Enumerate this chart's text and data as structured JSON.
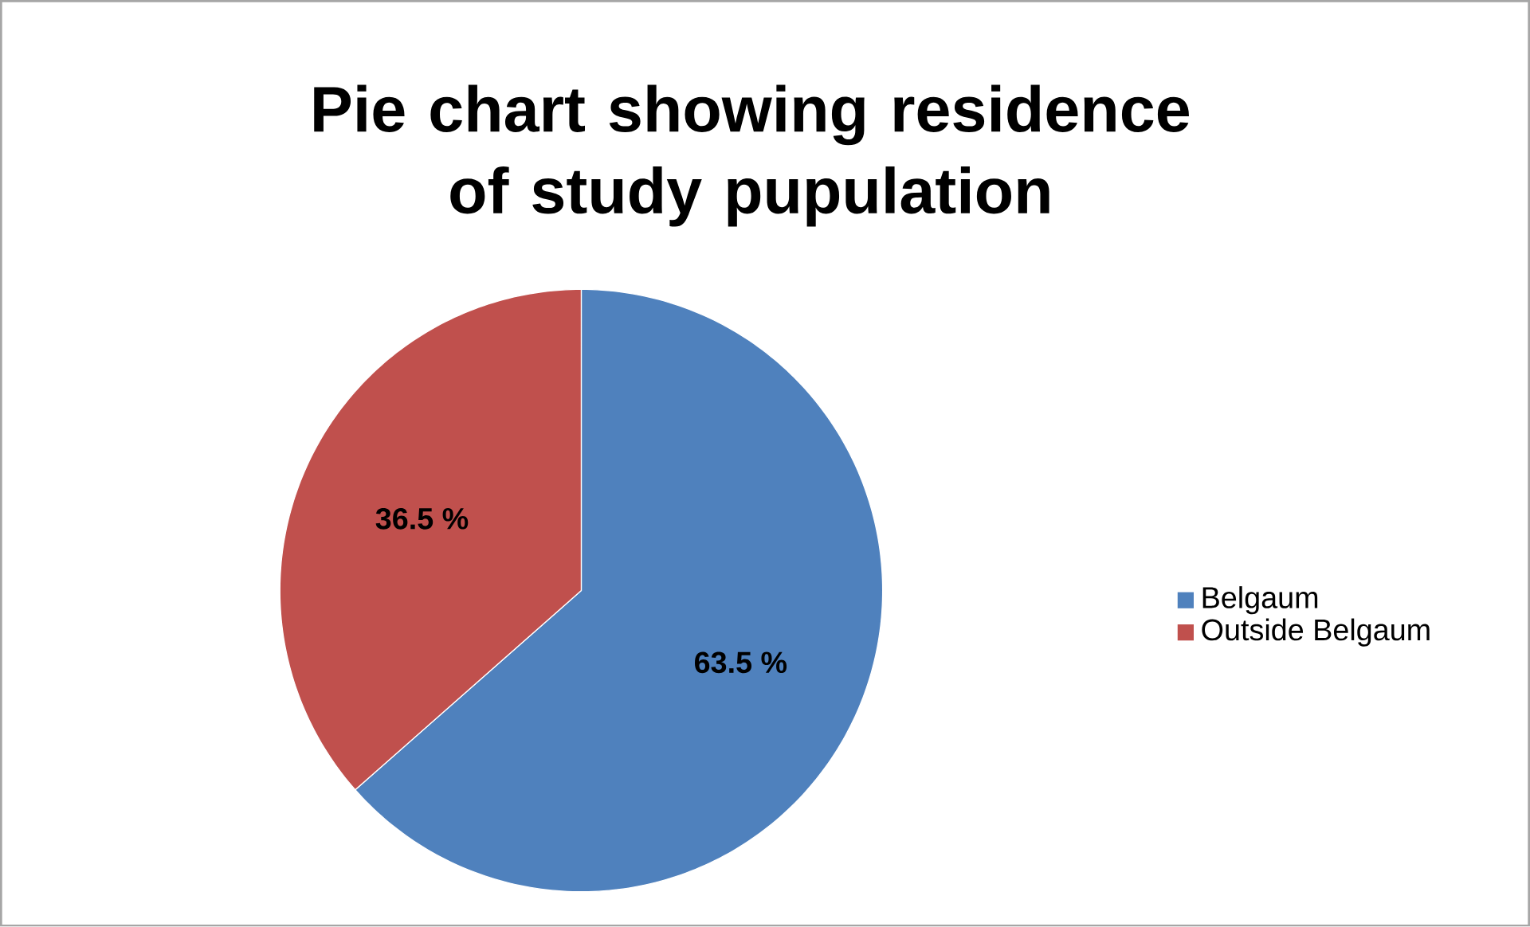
{
  "chart_data": {
    "type": "pie",
    "title": "Pie chart showing residence of study pupulation",
    "categories": [
      "Belgaum",
      "Outside Belgaum"
    ],
    "values": [
      63.5,
      36.5
    ],
    "colors": [
      "#4f81bd",
      "#c0504d"
    ],
    "value_labels": [
      "63.5 %",
      "36.5 %"
    ],
    "legend": "right"
  }
}
